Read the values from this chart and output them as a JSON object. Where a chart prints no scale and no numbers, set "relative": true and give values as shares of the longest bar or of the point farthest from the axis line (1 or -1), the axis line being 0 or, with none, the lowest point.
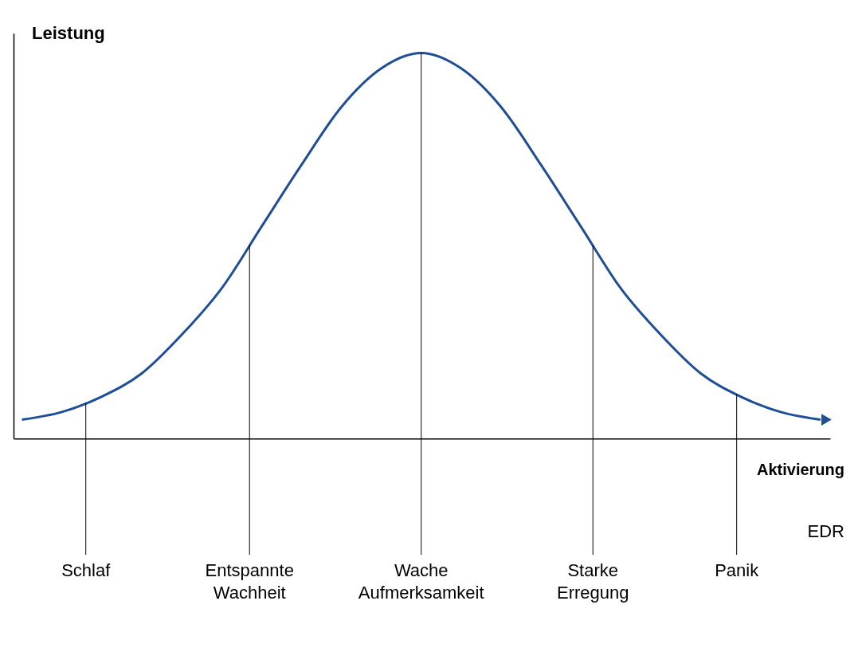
{
  "chart_data": {
    "type": "line",
    "relative": true,
    "xlabel": "Aktivierung",
    "ylabel": "Leistung",
    "categories": [
      null,
      null,
      null,
      null,
      null,
      null,
      null,
      null,
      null,
      null,
      null,
      null,
      null,
      null,
      null,
      null,
      null,
      null,
      null,
      null,
      null
    ],
    "values": [
      0.05,
      0.07,
      0.11,
      0.17,
      0.27,
      0.39,
      0.55,
      0.71,
      0.86,
      0.96,
      1,
      0.96,
      0.86,
      0.71,
      0.55,
      0.39,
      0.27,
      0.17,
      0.11,
      0.07,
      0.05
    ],
    "color": "#1f4e96",
    "line_style": "solid",
    "annotations": [
      "Schlaf",
      "Entspannte Wachheit",
      "Wache Aufmerksamkeit",
      "Starke Erregung",
      "Panik",
      "EDR"
    ]
  }
}
